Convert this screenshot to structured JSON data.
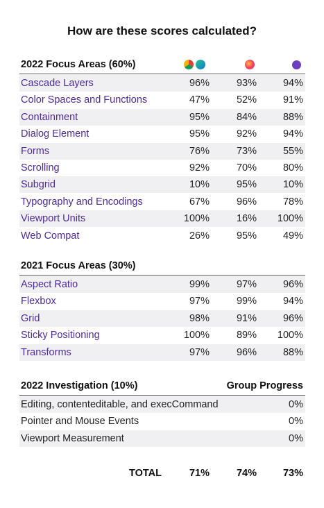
{
  "title": "How are these scores calculated?",
  "sections": [
    {
      "title": "2022 Focus Areas (60%)",
      "rows": [
        {
          "name": "Cascade Layers",
          "values": [
            "96%",
            "93%",
            "94%"
          ]
        },
        {
          "name": "Color Spaces and Functions",
          "values": [
            "47%",
            "52%",
            "91%"
          ]
        },
        {
          "name": "Containment",
          "values": [
            "95%",
            "84%",
            "88%"
          ]
        },
        {
          "name": "Dialog Element",
          "values": [
            "95%",
            "92%",
            "94%"
          ]
        },
        {
          "name": "Forms",
          "values": [
            "76%",
            "73%",
            "55%"
          ]
        },
        {
          "name": "Scrolling",
          "values": [
            "92%",
            "70%",
            "80%"
          ]
        },
        {
          "name": "Subgrid",
          "values": [
            "10%",
            "95%",
            "10%"
          ]
        },
        {
          "name": "Typography and Encodings",
          "values": [
            "67%",
            "96%",
            "78%"
          ]
        },
        {
          "name": "Viewport Units",
          "values": [
            "100%",
            "16%",
            "100%"
          ]
        },
        {
          "name": "Web Compat",
          "values": [
            "26%",
            "95%",
            "49%"
          ]
        }
      ]
    },
    {
      "title": "2021 Focus Areas (30%)",
      "rows": [
        {
          "name": "Aspect Ratio",
          "values": [
            "99%",
            "97%",
            "96%"
          ]
        },
        {
          "name": "Flexbox",
          "values": [
            "97%",
            "99%",
            "94%"
          ]
        },
        {
          "name": "Grid",
          "values": [
            "98%",
            "91%",
            "96%"
          ]
        },
        {
          "name": "Sticky Positioning",
          "values": [
            "100%",
            "89%",
            "100%"
          ]
        },
        {
          "name": "Transforms",
          "values": [
            "97%",
            "96%",
            "88%"
          ]
        }
      ]
    },
    {
      "title": "2022 Investigation (10%)",
      "column_header": "Group Progress",
      "rows": [
        {
          "name": "Editing, contenteditable, and execCommand",
          "values": [
            "0%"
          ]
        },
        {
          "name": "Pointer and Mouse Events",
          "values": [
            "0%"
          ]
        },
        {
          "name": "Viewport Measurement",
          "values": [
            "0%"
          ]
        }
      ]
    }
  ],
  "total": {
    "label": "TOTAL",
    "values": [
      "71%",
      "74%",
      "73%"
    ]
  }
}
